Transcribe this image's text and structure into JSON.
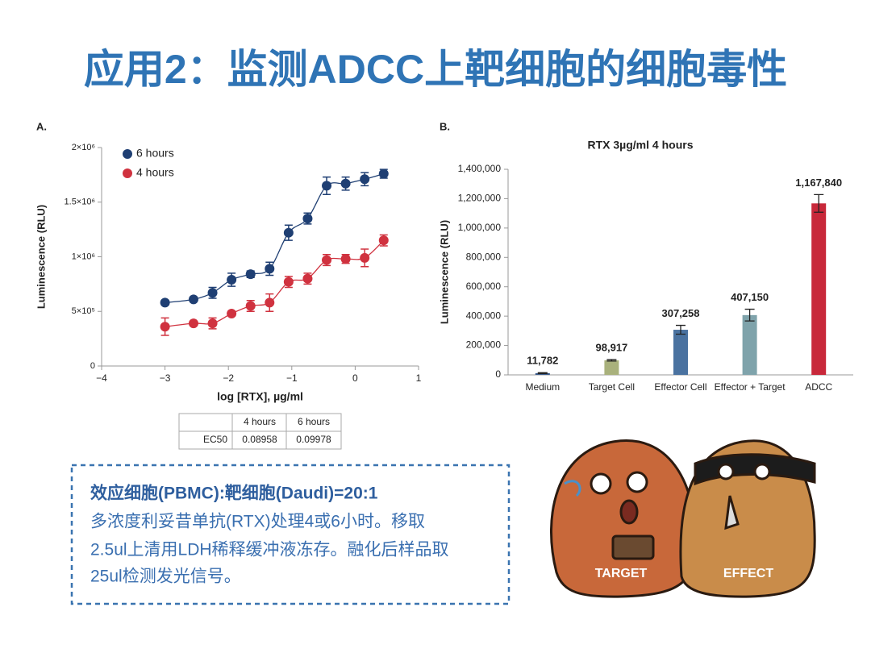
{
  "title": "应用2：监测ADCC上靶细胞的细胞毒性",
  "chart_data": [
    {
      "type": "line",
      "panel": "A.",
      "x_label": "log [RTX], µg/ml",
      "y_label": "Luminescence (RLU)",
      "x": [
        -3,
        -2.55,
        -2.25,
        -1.95,
        -1.65,
        -1.35,
        -1.05,
        -0.75,
        -0.45,
        -0.15,
        0.15,
        0.45
      ],
      "series": [
        {
          "name": "4 hours",
          "color": "#d0323f",
          "values": [
            360000,
            390000,
            390000,
            480000,
            550000,
            580000,
            770000,
            800000,
            970000,
            980000,
            990000,
            1150000
          ],
          "errors": [
            80000,
            20000,
            50000,
            20000,
            50000,
            80000,
            50000,
            50000,
            50000,
            40000,
            80000,
            50000
          ]
        },
        {
          "name": "6 hours",
          "color": "#1f3f73",
          "values": [
            580000,
            610000,
            670000,
            790000,
            840000,
            890000,
            1220000,
            1350000,
            1650000,
            1670000,
            1710000,
            1760000
          ],
          "errors": [
            20000,
            20000,
            50000,
            60000,
            30000,
            60000,
            70000,
            50000,
            80000,
            60000,
            60000,
            40000
          ]
        }
      ],
      "xlim": [
        -4,
        1
      ],
      "xticks": [
        {
          "value": -4,
          "label": "−4"
        },
        {
          "value": -3,
          "label": "−3"
        },
        {
          "value": -2,
          "label": "−2"
        },
        {
          "value": -1,
          "label": "−1"
        },
        0,
        1
      ],
      "ylim": [
        0,
        2000000
      ],
      "yticks": [
        0,
        {
          "value": 500000,
          "label": "5×10⁵"
        },
        {
          "value": 1000000,
          "label": "1×10⁶"
        },
        {
          "value": 1500000,
          "label": "1.5×10⁶"
        },
        {
          "value": 2000000,
          "label": "2×10⁶"
        }
      ],
      "legend": "upper left",
      "grid": false
    },
    {
      "type": "bar",
      "panel": "B.",
      "title": "RTX 3µg/ml 4 hours",
      "y_label": "Luminescence (RLU)",
      "categories": [
        "Medium",
        "Target Cell",
        "Effector Cell",
        "Effector + Target",
        "ADCC"
      ],
      "values": [
        11782,
        98917,
        307258,
        407150,
        1167840
      ],
      "value_labels": [
        "11,782",
        "98,917",
        "307,258",
        "407,150",
        "1,167,840"
      ],
      "errors": [
        3000,
        5000,
        30000,
        40000,
        60000
      ],
      "colors": [
        "#3a5a8a",
        "#a9b17c",
        "#4a72a0",
        "#7fa3ab",
        "#c8283a"
      ],
      "ylim": [
        0,
        1400000
      ],
      "yticks": [
        0,
        {
          "value": 200000,
          "label": "200,000"
        },
        {
          "value": 400000,
          "label": "400,000"
        },
        {
          "value": 600000,
          "label": "600,000"
        },
        {
          "value": 800000,
          "label": "800,000"
        },
        {
          "value": 1000000,
          "label": "1,000,000"
        },
        {
          "value": 1200000,
          "label": "1,200,000"
        },
        {
          "value": 1400000,
          "label": "1,400,000"
        }
      ],
      "grid": false
    }
  ],
  "table": {
    "columns": [
      "4 hours",
      "6 hours"
    ],
    "rows": [
      {
        "label": "EC50",
        "values": [
          0.08958,
          0.09978
        ]
      }
    ]
  },
  "note": {
    "heading": "效应细胞(PBMC):靶细胞(Daudi)=20:1",
    "lines": [
      "多浓度利妥昔单抗(RTX)处理4或6小时。移取",
      "2.5ul上清用LDH稀释缓冲液冻存。融化后样品取",
      "25ul检测发光信号。"
    ]
  },
  "cartoon": {
    "labels": [
      "TARGET",
      "EFFECT"
    ]
  }
}
